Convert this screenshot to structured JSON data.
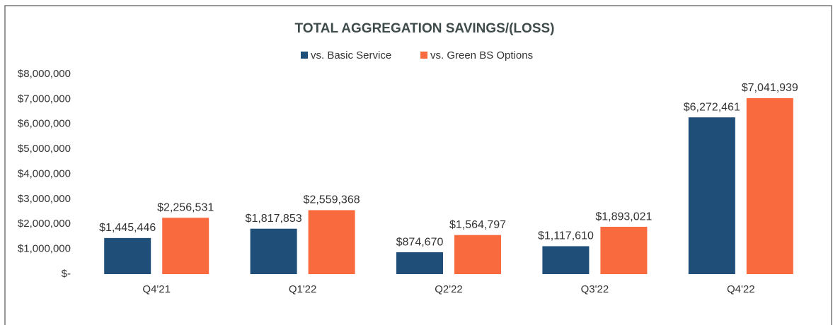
{
  "chart_data": {
    "type": "bar",
    "title": "TOTAL AGGREGATION SAVINGS/(LOSS)",
    "categories": [
      "Q4'21",
      "Q1'22",
      "Q2'22",
      "Q3'22",
      "Q4'22"
    ],
    "series": [
      {
        "name": "vs. Basic Service",
        "color": "#1f4e79",
        "values": [
          1445446,
          1817853,
          874670,
          1117610,
          6272461
        ],
        "value_labels": [
          "$1,445,446",
          "$1,817,853",
          "$874,670",
          "$1,117,610",
          "$6,272,461"
        ]
      },
      {
        "name": "vs. Green BS Options",
        "color": "#f96a3f",
        "values": [
          2256531,
          2559368,
          1564797,
          1893021,
          7041939
        ],
        "value_labels": [
          "$2,256,531",
          "$2,559,368",
          "$1,564,797",
          "$1,893,021",
          "$7,041,939"
        ]
      }
    ],
    "ylim": [
      0,
      8000000
    ],
    "yticks": [
      {
        "value": 0,
        "label": "$-"
      },
      {
        "value": 1000000,
        "label": "$1,000,000"
      },
      {
        "value": 2000000,
        "label": "$2,000,000"
      },
      {
        "value": 3000000,
        "label": "$3,000,000"
      },
      {
        "value": 4000000,
        "label": "$4,000,000"
      },
      {
        "value": 5000000,
        "label": "$5,000,000"
      },
      {
        "value": 6000000,
        "label": "$6,000,000"
      },
      {
        "value": 7000000,
        "label": "$7,000,000"
      },
      {
        "value": 8000000,
        "label": "$8,000,000"
      }
    ],
    "grid": false,
    "legend": "top"
  }
}
